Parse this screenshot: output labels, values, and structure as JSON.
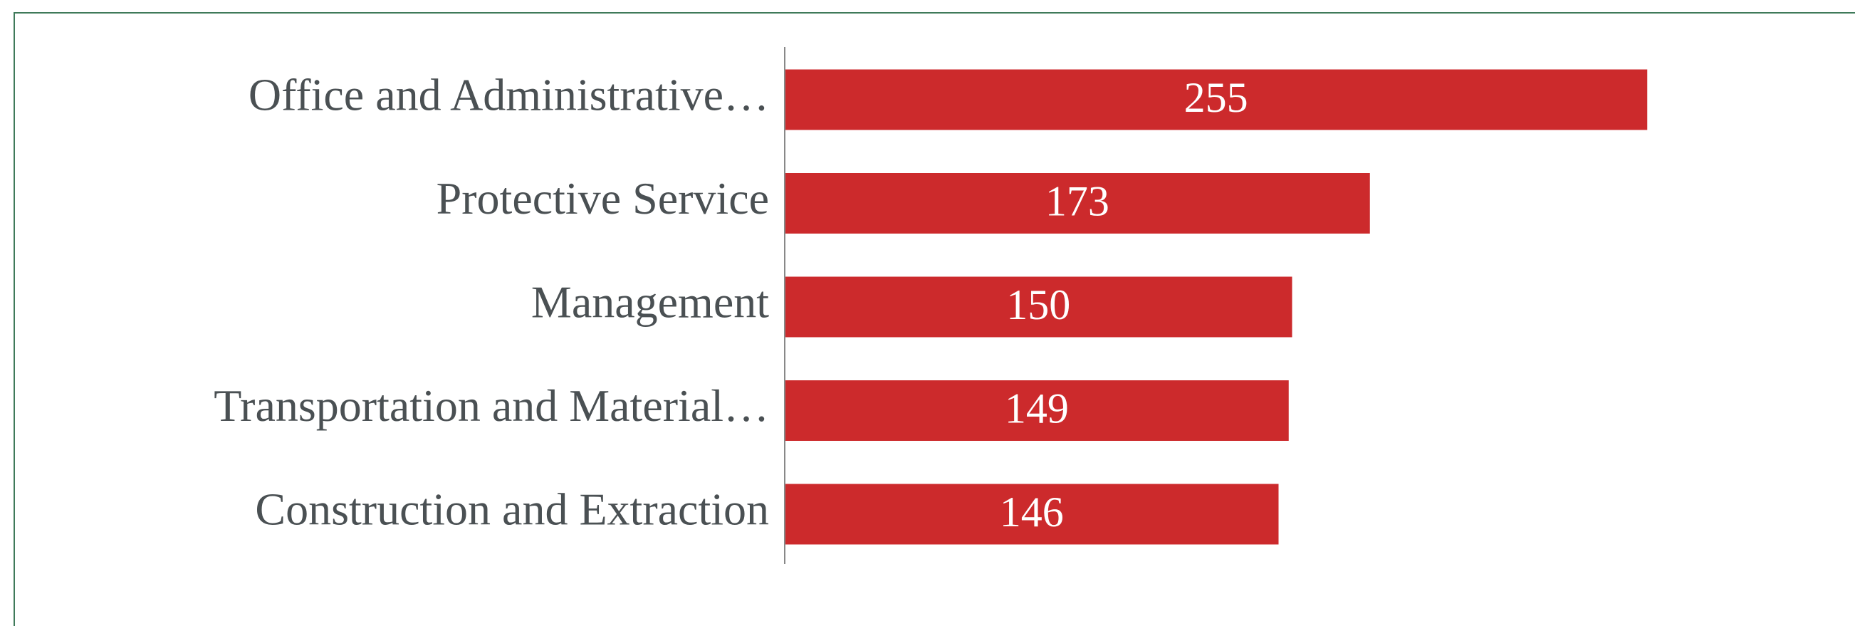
{
  "chart_data": {
    "type": "hbar",
    "categories": [
      "Office and Administrative…",
      "Protective Service",
      "Management",
      "Transportation and Material…",
      "Construction and Extraction"
    ],
    "values": [
      255,
      173,
      150,
      149,
      146
    ],
    "color": "#cc2a2c"
  }
}
